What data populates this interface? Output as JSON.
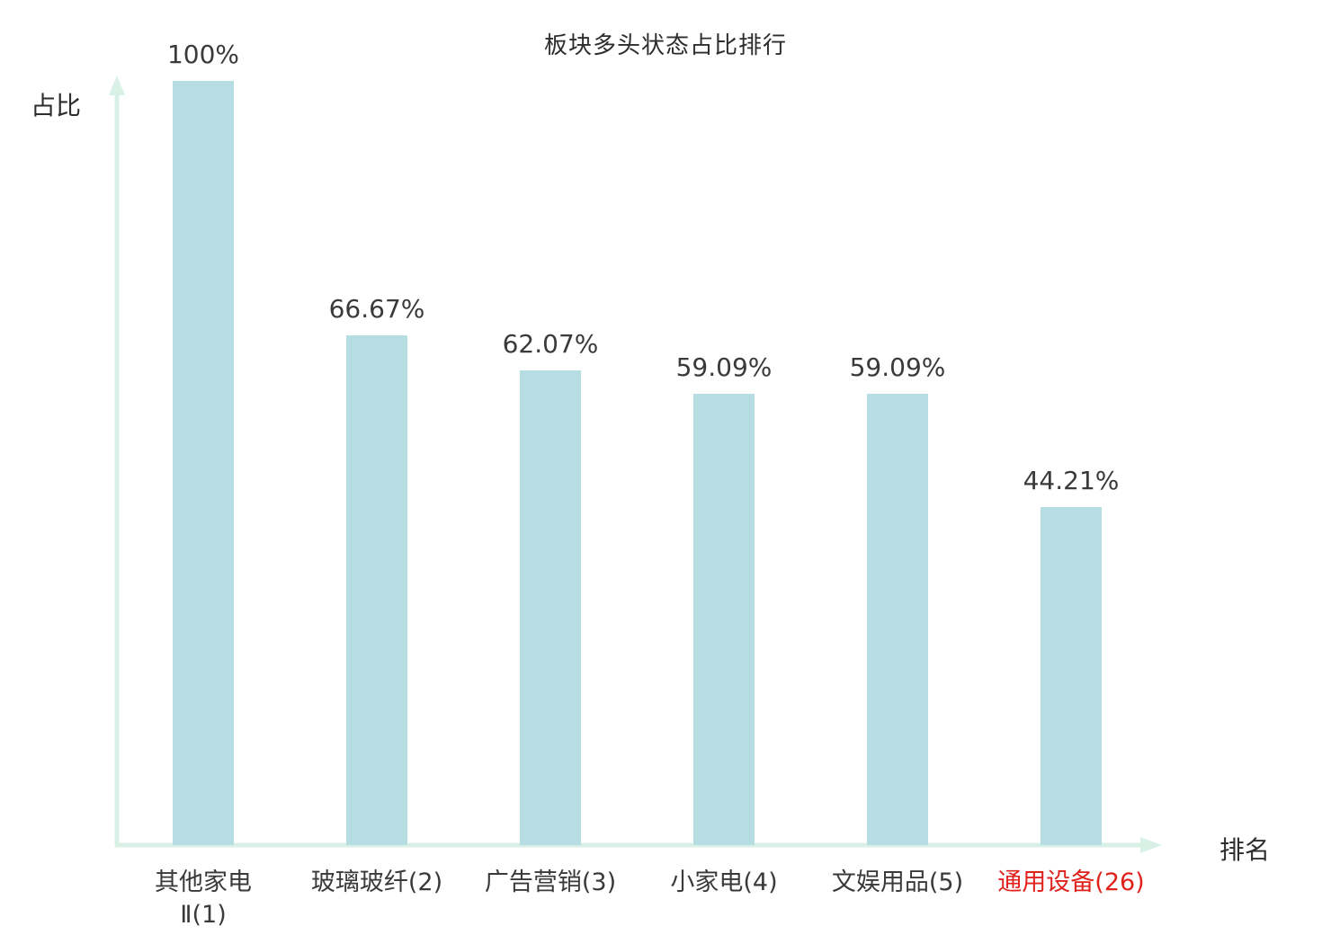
{
  "chart_data": {
    "type": "bar",
    "title": "板块多头状态占比排行",
    "xlabel": "排名",
    "ylabel": "占比",
    "ylim": [
      0,
      100
    ],
    "grid": false,
    "legend_position": "none",
    "categories": [
      "其他家电\nⅡ(1)",
      "玻璃玻纤(2)",
      "广告营销(3)",
      "小家电(4)",
      "文娱用品(5)",
      "通用设备(26)"
    ],
    "values": [
      100,
      66.67,
      62.07,
      59.09,
      59.09,
      44.21
    ],
    "value_labels": [
      "100%",
      "66.67%",
      "62.07%",
      "59.09%",
      "59.09%",
      "44.21%"
    ],
    "category_colors": [
      "#3a3a3a",
      "#3a3a3a",
      "#3a3a3a",
      "#3a3a3a",
      "#3a3a3a",
      "#e0211c"
    ],
    "bar_color": "#b5dde2",
    "axis_color": "#d9f0e6",
    "value_label_color": "#3a3a3a"
  }
}
